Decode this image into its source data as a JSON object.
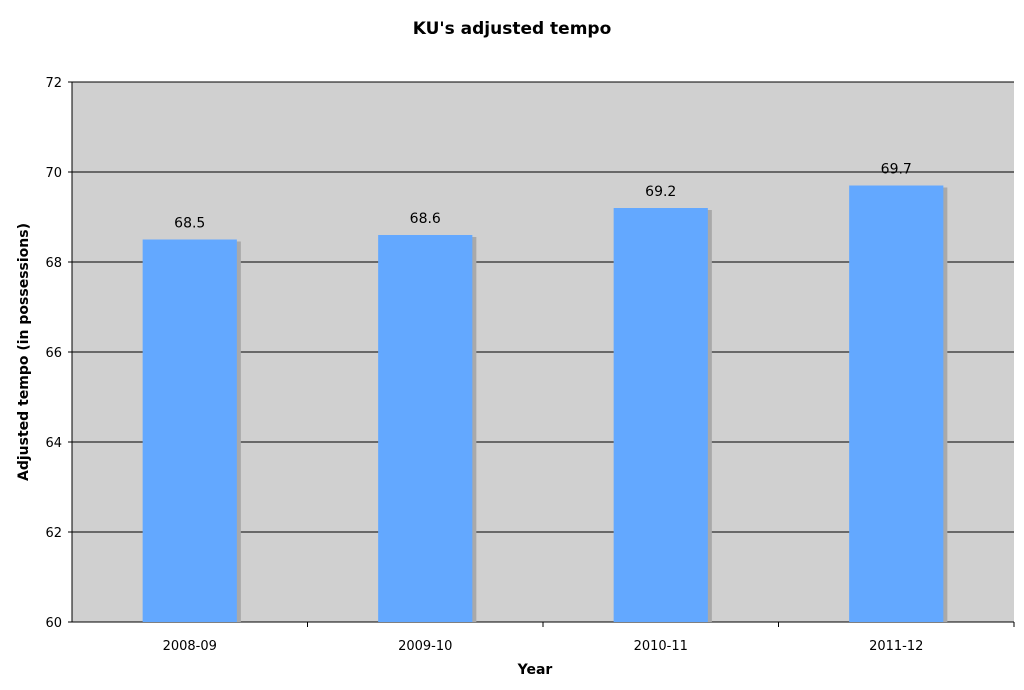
{
  "chart_data": {
    "type": "bar",
    "title": "KU's adjusted tempo",
    "xlabel": "Year",
    "ylabel": "Adjusted tempo (in possessions)",
    "categories": [
      "2008-09",
      "2009-10",
      "2010-11",
      "2011-12"
    ],
    "values": [
      68.5,
      68.6,
      69.2,
      69.7
    ],
    "data_labels": [
      "68.5",
      "68.6",
      "69.2",
      "69.7"
    ],
    "ylim": [
      60,
      72
    ],
    "yticks": [
      60,
      62,
      64,
      66,
      68,
      70,
      72
    ],
    "grid": true,
    "legend": "none",
    "colors": {
      "bar": "#63a8ff",
      "bar_shadow": "#a9a9a9",
      "plot_background": "#d0d0d0",
      "gridline": "#000000"
    }
  }
}
